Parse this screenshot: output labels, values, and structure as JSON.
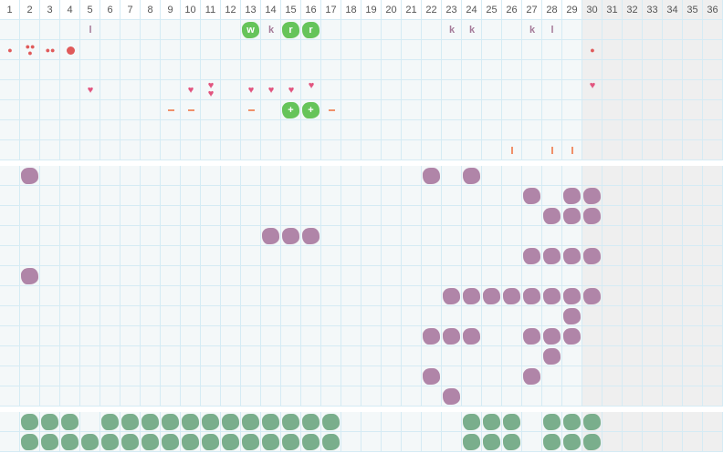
{
  "columns": [
    "1",
    "2",
    "3",
    "4",
    "5",
    "6",
    "7",
    "8",
    "9",
    "10",
    "11",
    "12",
    "13",
    "14",
    "15",
    "16",
    "17",
    "18",
    "19",
    "20",
    "21",
    "22",
    "23",
    "24",
    "25",
    "26",
    "27",
    "28",
    "29",
    "30",
    "31",
    "32",
    "33",
    "34",
    "35",
    "36"
  ],
  "shaded_from_column": 30,
  "colors": {
    "grid": "#d5ebf4",
    "background": "#f4f8f9",
    "shaded": "#efefef",
    "purple": "#b085a8",
    "sage": "#7aae8c",
    "green": "#66c45a",
    "heart": "#e2557f",
    "drop": "#e05a5a",
    "orange": "#f0906a",
    "letter": "#a57a98"
  },
  "sections": [
    {
      "name": "top",
      "rows": [
        [
          {
            "col": 5,
            "type": "letter",
            "text": "l"
          },
          {
            "col": 13,
            "type": "green",
            "text": "w"
          },
          {
            "col": 14,
            "type": "letter",
            "text": "k"
          },
          {
            "col": 15,
            "type": "green",
            "text": "r"
          },
          {
            "col": 16,
            "type": "green",
            "text": "r"
          },
          {
            "col": 23,
            "type": "letter",
            "text": "k"
          },
          {
            "col": 24,
            "type": "letter",
            "text": "k"
          },
          {
            "col": 27,
            "type": "letter",
            "text": "k"
          },
          {
            "col": 28,
            "type": "letter",
            "text": "l"
          }
        ],
        [
          {
            "col": 1,
            "type": "drop",
            "count": 1
          },
          {
            "col": 2,
            "type": "drop",
            "count": 3
          },
          {
            "col": 3,
            "type": "drop",
            "count": 2
          },
          {
            "col": 4,
            "type": "dot"
          },
          {
            "col": 30,
            "type": "drop",
            "count": 1
          }
        ],
        [],
        [
          {
            "col": 5,
            "type": "heart",
            "count": 1
          },
          {
            "col": 10,
            "type": "heart",
            "count": 1
          },
          {
            "col": 11,
            "type": "heart",
            "count": 2
          },
          {
            "col": 13,
            "type": "heart",
            "count": 1
          },
          {
            "col": 14,
            "type": "heart",
            "count": 1
          },
          {
            "col": 15,
            "type": "heart",
            "count": 1
          },
          {
            "col": 16,
            "type": "heart",
            "count": 1,
            "raised": true
          },
          {
            "col": 30,
            "type": "heart",
            "count": 1,
            "raised": true
          }
        ],
        [
          {
            "col": 9,
            "type": "dash"
          },
          {
            "col": 10,
            "type": "dash"
          },
          {
            "col": 13,
            "type": "dash"
          },
          {
            "col": 15,
            "type": "green",
            "text": "+"
          },
          {
            "col": 16,
            "type": "green",
            "text": "+"
          },
          {
            "col": 17,
            "type": "dash"
          }
        ],
        [],
        [
          {
            "col": 26,
            "type": "bar"
          },
          {
            "col": 28,
            "type": "bar"
          },
          {
            "col": 29,
            "type": "bar"
          }
        ]
      ]
    },
    {
      "name": "middle",
      "rows": [
        [
          {
            "cols": [
              2,
              22,
              24
            ],
            "type": "purple"
          }
        ],
        [
          {
            "cols": [
              27,
              29,
              30
            ],
            "type": "purple"
          }
        ],
        [
          {
            "cols": [
              28,
              29,
              30
            ],
            "type": "purple"
          }
        ],
        [
          {
            "cols": [
              14,
              15,
              16
            ],
            "type": "purple"
          }
        ],
        [
          {
            "cols": [
              27,
              28,
              29,
              30
            ],
            "type": "purple"
          }
        ],
        [
          {
            "cols": [
              2
            ],
            "type": "purple"
          }
        ],
        [
          {
            "cols": [
              23,
              24,
              25,
              26,
              27,
              28,
              29,
              30
            ],
            "type": "purple"
          }
        ],
        [
          {
            "cols": [
              29
            ],
            "type": "purple"
          }
        ],
        [
          {
            "cols": [
              22,
              23,
              24,
              27,
              28,
              29
            ],
            "type": "purple"
          }
        ],
        [
          {
            "cols": [
              28
            ],
            "type": "purple"
          }
        ],
        [
          {
            "cols": [
              22,
              27
            ],
            "type": "purple"
          }
        ],
        [
          {
            "cols": [
              23
            ],
            "type": "purple"
          }
        ]
      ]
    },
    {
      "name": "bottom",
      "rows": [
        [
          {
            "cols": [
              2,
              3,
              4,
              6,
              7,
              8,
              9,
              10,
              11,
              12,
              13,
              14,
              15,
              16,
              17,
              24,
              25,
              26,
              28,
              29,
              30
            ],
            "type": "sage"
          }
        ],
        [
          {
            "cols": [
              2,
              3,
              4,
              5,
              6,
              7,
              8,
              9,
              10,
              11,
              12,
              13,
              14,
              15,
              16,
              17,
              24,
              25,
              26,
              28,
              29,
              30
            ],
            "type": "sage"
          }
        ]
      ]
    }
  ]
}
